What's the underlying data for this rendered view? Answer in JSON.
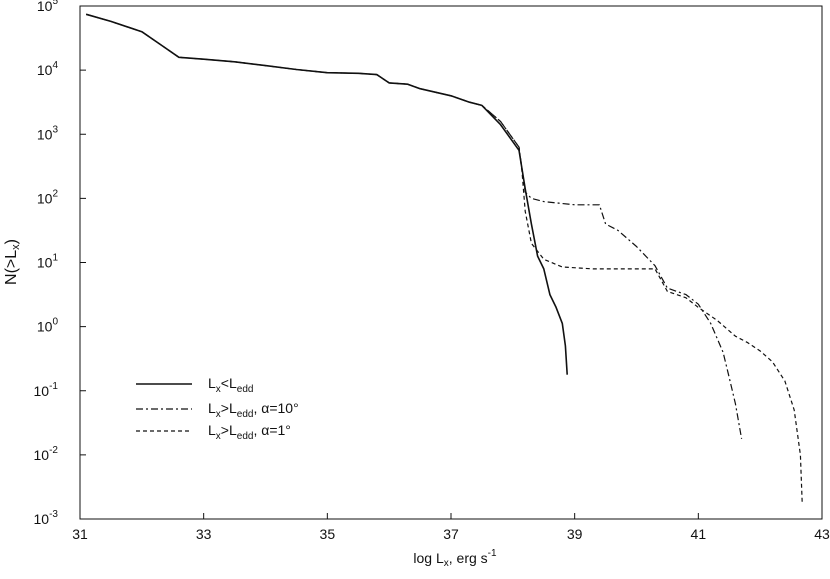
{
  "chart_data": {
    "type": "line",
    "xlabel": {
      "main": "log L",
      "sub": "x",
      "rest": ", erg s",
      "sup": "-1"
    },
    "ylabel": {
      "main": "N(>L",
      "sub": "x",
      "close": ")"
    },
    "xlim": [
      31,
      43
    ],
    "ylim_log10": [
      -3,
      5
    ],
    "y_scale": "log",
    "grid": false,
    "legend_position": "lower-left",
    "x_ticks": [
      31,
      33,
      35,
      37,
      39,
      41,
      43
    ],
    "x_tick_labels": [
      "31",
      "33",
      "35",
      "37",
      "39",
      "41",
      "43"
    ],
    "y_ticks_log10": [
      -3,
      -2,
      -1,
      0,
      1,
      2,
      3,
      4,
      5
    ],
    "y_tick_labels": [
      {
        "base": "10",
        "exp": "-3"
      },
      {
        "base": "10",
        "exp": "-2"
      },
      {
        "base": "10",
        "exp": "-1"
      },
      {
        "base": "10",
        "exp": "0"
      },
      {
        "base": "10",
        "exp": "1"
      },
      {
        "base": "10",
        "exp": "2"
      },
      {
        "base": "10",
        "exp": "3"
      },
      {
        "base": "10",
        "exp": "4"
      },
      {
        "base": "10",
        "exp": "5"
      }
    ],
    "series": [
      {
        "legend": {
          "a": "L",
          "as": "x",
          "op": "<",
          "b": "L",
          "bs": "edd",
          "tail": ""
        },
        "dash": "solid",
        "x": [
          31.1,
          31.5,
          32.0,
          32.3,
          32.6,
          33.0,
          33.5,
          34.0,
          34.5,
          35.0,
          35.5,
          35.8,
          36.0,
          36.3,
          36.5,
          37.0,
          37.3,
          37.5,
          37.8,
          38.1,
          38.2,
          38.3,
          38.4,
          38.5,
          38.6,
          38.7,
          38.8,
          38.85,
          38.88
        ],
        "y_log10": [
          4.87,
          4.76,
          4.6,
          4.4,
          4.2,
          4.17,
          4.13,
          4.07,
          4.01,
          3.96,
          3.95,
          3.93,
          3.8,
          3.78,
          3.71,
          3.6,
          3.5,
          3.45,
          3.15,
          2.75,
          2.15,
          1.6,
          1.1,
          0.9,
          0.5,
          0.3,
          0.05,
          -0.3,
          -0.75
        ]
      },
      {
        "legend": {
          "a": "L",
          "as": "x",
          "op": ">",
          "b": "L",
          "bs": "edd",
          "tail": ", α=10°"
        },
        "dash": "dashdot",
        "x": [
          31.1,
          31.5,
          32.0,
          32.3,
          32.6,
          33.0,
          33.5,
          34.0,
          34.5,
          35.0,
          35.5,
          35.8,
          36.0,
          36.3,
          36.5,
          37.0,
          37.3,
          37.5,
          37.8,
          38.1,
          38.15,
          38.2,
          38.3,
          38.5,
          39.0,
          39.4,
          39.5,
          39.7,
          40.0,
          40.3,
          40.5,
          40.8,
          41.0,
          41.2,
          41.4,
          41.5,
          41.6,
          41.7
        ],
        "y_log10": [
          4.87,
          4.76,
          4.6,
          4.4,
          4.2,
          4.17,
          4.13,
          4.07,
          4.01,
          3.96,
          3.95,
          3.93,
          3.8,
          3.78,
          3.71,
          3.6,
          3.5,
          3.45,
          3.2,
          2.8,
          2.45,
          2.1,
          2.0,
          1.95,
          1.9,
          1.9,
          1.6,
          1.5,
          1.25,
          0.95,
          0.6,
          0.5,
          0.35,
          0.05,
          -0.4,
          -0.8,
          -1.2,
          -1.75
        ]
      },
      {
        "legend": {
          "a": "L",
          "as": "x",
          "op": ">",
          "b": "L",
          "bs": "edd",
          "tail": ", α=1°"
        },
        "dash": "dashed",
        "x": [
          31.1,
          31.5,
          32.0,
          32.3,
          32.6,
          33.0,
          33.5,
          34.0,
          34.5,
          35.0,
          35.5,
          35.8,
          36.0,
          36.3,
          36.5,
          37.0,
          37.3,
          37.5,
          37.8,
          38.1,
          38.15,
          38.2,
          38.3,
          38.5,
          38.8,
          39.3,
          40.0,
          40.3,
          40.5,
          40.8,
          41.0,
          41.3,
          41.6,
          41.8,
          42.0,
          42.2,
          42.4,
          42.55,
          42.65,
          42.68
        ],
        "y_log10": [
          4.87,
          4.76,
          4.6,
          4.4,
          4.2,
          4.17,
          4.13,
          4.07,
          4.01,
          3.96,
          3.95,
          3.93,
          3.8,
          3.78,
          3.71,
          3.6,
          3.5,
          3.45,
          3.2,
          2.8,
          2.4,
          1.8,
          1.3,
          1.05,
          0.93,
          0.9,
          0.9,
          0.9,
          0.55,
          0.45,
          0.3,
          0.1,
          -0.15,
          -0.25,
          -0.38,
          -0.55,
          -0.85,
          -1.3,
          -2.0,
          -2.75
        ]
      }
    ]
  }
}
